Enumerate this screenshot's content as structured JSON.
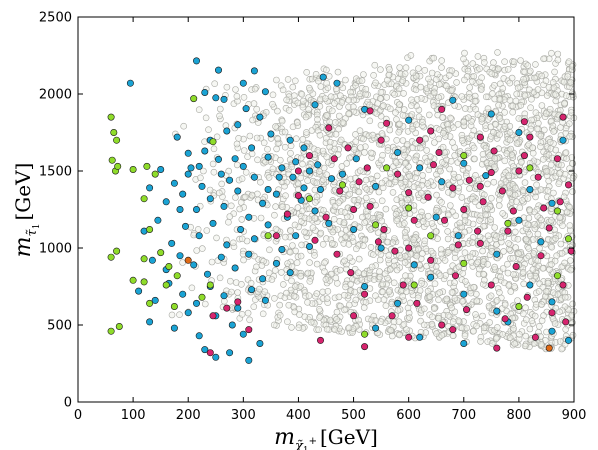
{
  "chart_data": {
    "type": "scatter",
    "title": "",
    "xlabel": {
      "var": "m",
      "sub": "χ̃",
      "sub_sub": "1",
      "sup": "+",
      "unit": "[GeV]"
    },
    "ylabel": {
      "var": "m",
      "sub": "τ̃",
      "sub_sub": "1",
      "unit": "[GeV]"
    },
    "xlim": [
      0,
      900
    ],
    "ylim": [
      0,
      2500
    ],
    "xticks": [
      "0",
      "100",
      "200",
      "300",
      "400",
      "500",
      "600",
      "700",
      "800",
      "900"
    ],
    "yticks": [
      "0",
      "500",
      "1000",
      "1500",
      "2000",
      "2500"
    ],
    "grid": false,
    "colors": {
      "background_points": "#a9aaa4",
      "cyan": "#1aa3d4",
      "magenta": "#d6246e",
      "green": "#8fdc2a",
      "orange": "#e06a16"
    },
    "series": [
      {
        "color_key": "cyan",
        "points": [
          [
            95,
            2070
          ],
          [
            215,
            2215
          ],
          [
            230,
            2010
          ],
          [
            255,
            2155
          ],
          [
            250,
            1975
          ],
          [
            265,
            1965
          ],
          [
            300,
            2070
          ],
          [
            320,
            2150
          ],
          [
            340,
            2015
          ],
          [
            305,
            1905
          ],
          [
            430,
            1930
          ],
          [
            445,
            2110
          ],
          [
            180,
            1720
          ],
          [
            200,
            1615
          ],
          [
            230,
            1630
          ],
          [
            240,
            1700
          ],
          [
            270,
            1760
          ],
          [
            290,
            1800
          ],
          [
            330,
            1850
          ],
          [
            350,
            1740
          ],
          [
            385,
            1700
          ],
          [
            410,
            1650
          ],
          [
            150,
            1510
          ],
          [
            175,
            1420
          ],
          [
            200,
            1480
          ],
          [
            220,
            1530
          ],
          [
            255,
            1575
          ],
          [
            275,
            1440
          ],
          [
            300,
            1530
          ],
          [
            320,
            1460
          ],
          [
            345,
            1590
          ],
          [
            370,
            1520
          ],
          [
            390,
            1460
          ],
          [
            420,
            1500
          ],
          [
            440,
            1380
          ],
          [
            460,
            1450
          ],
          [
            130,
            1390
          ],
          [
            160,
            1300
          ],
          [
            190,
            1350
          ],
          [
            215,
            1250
          ],
          [
            240,
            1320
          ],
          [
            265,
            1270
          ],
          [
            290,
            1370
          ],
          [
            310,
            1200
          ],
          [
            335,
            1290
          ],
          [
            360,
            1350
          ],
          [
            380,
            1200
          ],
          [
            405,
            1310
          ],
          [
            430,
            1240
          ],
          [
            455,
            1160
          ],
          [
            120,
            1110
          ],
          [
            145,
            1180
          ],
          [
            170,
            1030
          ],
          [
            195,
            1140
          ],
          [
            220,
            1080
          ],
          [
            245,
            1160
          ],
          [
            270,
            1020
          ],
          [
            295,
            1120
          ],
          [
            320,
            1060
          ],
          [
            345,
            1150
          ],
          [
            370,
            990
          ],
          [
            395,
            1080
          ],
          [
            420,
            1010
          ],
          [
            135,
            920
          ],
          [
            160,
            860
          ],
          [
            185,
            950
          ],
          [
            210,
            890
          ],
          [
            235,
            830
          ],
          [
            260,
            940
          ],
          [
            285,
            870
          ],
          [
            310,
            960
          ],
          [
            335,
            800
          ],
          [
            360,
            900
          ],
          [
            385,
            840
          ],
          [
            110,
            720
          ],
          [
            140,
            660
          ],
          [
            165,
            770
          ],
          [
            190,
            700
          ],
          [
            215,
            640
          ],
          [
            240,
            750
          ],
          [
            265,
            690
          ],
          [
            290,
            610
          ],
          [
            315,
            730
          ],
          [
            340,
            660
          ],
          [
            130,
            520
          ],
          [
            175,
            480
          ],
          [
            220,
            430
          ],
          [
            250,
            560
          ],
          [
            280,
            500
          ],
          [
            300,
            440
          ],
          [
            330,
            380
          ],
          [
            250,
            290
          ],
          [
            275,
            320
          ],
          [
            310,
            270
          ],
          [
            230,
            340
          ],
          [
            200,
            580
          ],
          [
            185,
            1250
          ],
          [
            205,
            1520
          ],
          [
            225,
            1400
          ],
          [
            260,
            1480
          ],
          [
            285,
            1580
          ],
          [
            315,
            1650
          ],
          [
            345,
            1380
          ],
          [
            365,
            1460
          ],
          [
            395,
            1560
          ],
          [
            410,
            1390
          ],
          [
            435,
            1540
          ],
          [
            480,
            1480
          ],
          [
            505,
            1580
          ],
          [
            540,
            1400
          ],
          [
            580,
            1620
          ],
          [
            620,
            1520
          ],
          [
            660,
            1430
          ],
          [
            700,
            1550
          ],
          [
            740,
            1470
          ],
          [
            820,
            1380
          ],
          [
            860,
            1290
          ],
          [
            500,
            1120
          ],
          [
            550,
            1000
          ],
          [
            610,
            890
          ],
          [
            650,
            1200
          ],
          [
            690,
            1080
          ],
          [
            760,
            960
          ],
          [
            800,
            1180
          ],
          [
            840,
            1040
          ],
          [
            520,
            750
          ],
          [
            580,
            640
          ],
          [
            640,
            810
          ],
          [
            700,
            700
          ],
          [
            760,
            590
          ],
          [
            820,
            760
          ],
          [
            860,
            650
          ],
          [
            540,
            480
          ],
          [
            620,
            420
          ],
          [
            700,
            380
          ],
          [
            780,
            520
          ],
          [
            860,
            460
          ],
          [
            890,
            400
          ],
          [
            470,
            2070
          ],
          [
            520,
            1900
          ],
          [
            600,
            1830
          ],
          [
            680,
            1960
          ],
          [
            750,
            1870
          ],
          [
            800,
            1750
          ],
          [
            880,
            1700
          ]
        ]
      },
      {
        "color_key": "magenta",
        "points": [
          [
            360,
            1080
          ],
          [
            380,
            1220
          ],
          [
            400,
            1340
          ],
          [
            420,
            1600
          ],
          [
            455,
            1780
          ],
          [
            490,
            1650
          ],
          [
            510,
            1430
          ],
          [
            530,
            1270
          ],
          [
            555,
            1120
          ],
          [
            575,
            980
          ],
          [
            600,
            1360
          ],
          [
            620,
            1700
          ],
          [
            645,
            1540
          ],
          [
            665,
            1180
          ],
          [
            690,
            1020
          ],
          [
            710,
            1440
          ],
          [
            735,
            1300
          ],
          [
            755,
            1630
          ],
          [
            780,
            1110
          ],
          [
            800,
            1500
          ],
          [
            820,
            1720
          ],
          [
            845,
            1260
          ],
          [
            870,
            1580
          ],
          [
            890,
            1410
          ],
          [
            470,
            960
          ],
          [
            495,
            840
          ],
          [
            520,
            700
          ],
          [
            545,
            1040
          ],
          [
            570,
            560
          ],
          [
            590,
            760
          ],
          [
            615,
            640
          ],
          [
            640,
            920
          ],
          [
            660,
            500
          ],
          [
            685,
            820
          ],
          [
            705,
            600
          ],
          [
            730,
            1030
          ],
          [
            750,
            760
          ],
          [
            775,
            540
          ],
          [
            795,
            880
          ],
          [
            815,
            680
          ],
          [
            840,
            950
          ],
          [
            860,
            580
          ],
          [
            880,
            760
          ],
          [
            895,
            980
          ],
          [
            430,
            1050
          ],
          [
            450,
            1200
          ],
          [
            475,
            1370
          ],
          [
            500,
            1250
          ],
          [
            525,
            1520
          ],
          [
            550,
            1700
          ],
          [
            580,
            1480
          ],
          [
            610,
            1180
          ],
          [
            635,
            1330
          ],
          [
            655,
            1620
          ],
          [
            680,
            1390
          ],
          [
            700,
            1250
          ],
          [
            725,
            1110
          ],
          [
            750,
            1490
          ],
          [
            770,
            1370
          ],
          [
            790,
            1240
          ],
          [
            810,
            1600
          ],
          [
            835,
            1460
          ],
          [
            855,
            1130
          ],
          [
            875,
            1300
          ],
          [
            240,
            320
          ],
          [
            245,
            560
          ],
          [
            270,
            610
          ],
          [
            290,
            650
          ],
          [
            310,
            470
          ],
          [
            440,
            400
          ],
          [
            520,
            360
          ],
          [
            600,
            420
          ],
          [
            680,
            470
          ],
          [
            760,
            350
          ],
          [
            830,
            420
          ],
          [
            885,
            520
          ],
          [
            400,
            1500
          ],
          [
            465,
            1580
          ],
          [
            560,
            1810
          ],
          [
            640,
            1760
          ],
          [
            730,
            1720
          ],
          [
            810,
            1820
          ],
          [
            880,
            1850
          ],
          [
            530,
            1890
          ],
          [
            730,
            1400
          ],
          [
            600,
            1000
          ],
          [
            500,
            560
          ],
          [
            660,
            1900
          ]
        ]
      },
      {
        "color_key": "green",
        "points": [
          [
            60,
            1850
          ],
          [
            65,
            1750
          ],
          [
            70,
            1700
          ],
          [
            62,
            1570
          ],
          [
            68,
            1500
          ],
          [
            72,
            1530
          ],
          [
            100,
            1510
          ],
          [
            125,
            1530
          ],
          [
            140,
            1480
          ],
          [
            120,
            1320
          ],
          [
            130,
            1120
          ],
          [
            60,
            940
          ],
          [
            70,
            980
          ],
          [
            120,
            930
          ],
          [
            150,
            970
          ],
          [
            165,
            880
          ],
          [
            100,
            790
          ],
          [
            120,
            780
          ],
          [
            160,
            760
          ],
          [
            180,
            820
          ],
          [
            60,
            460
          ],
          [
            75,
            490
          ],
          [
            130,
            640
          ],
          [
            175,
            620
          ],
          [
            225,
            680
          ],
          [
            240,
            760
          ],
          [
            210,
            1970
          ],
          [
            245,
            1690
          ],
          [
            345,
            1080
          ],
          [
            420,
            1320
          ],
          [
            480,
            1410
          ],
          [
            540,
            1150
          ],
          [
            560,
            1520
          ],
          [
            600,
            1260
          ],
          [
            640,
            1080
          ],
          [
            700,
            1600
          ],
          [
            780,
            1160
          ],
          [
            820,
            1520
          ],
          [
            870,
            1240
          ],
          [
            890,
            1060
          ],
          [
            520,
            440
          ],
          [
            610,
            760
          ],
          [
            700,
            900
          ],
          [
            800,
            620
          ],
          [
            870,
            820
          ]
        ]
      },
      {
        "color_key": "orange",
        "points": [
          [
            855,
            350
          ],
          [
            200,
            920
          ]
        ]
      }
    ]
  }
}
